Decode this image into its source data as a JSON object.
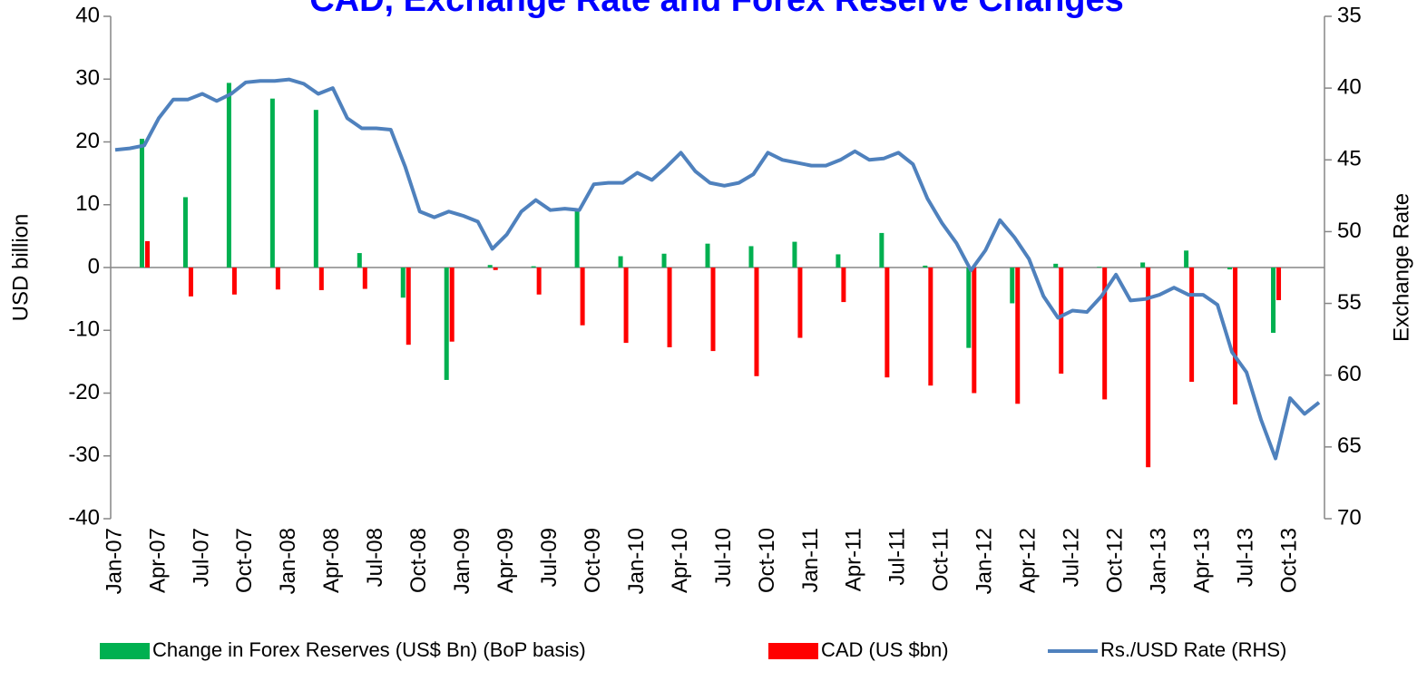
{
  "chart_data": {
    "type": "combo",
    "title": "CAD, Exchange Rate and Forex Reserve Changes",
    "y_label": "USD billion",
    "y2_label": "Exchange Rate",
    "categories": [
      "Jan-07",
      null,
      null,
      "Apr-07",
      null,
      null,
      "Jul-07",
      null,
      null,
      "Oct-07",
      null,
      null,
      "Jan-08",
      null,
      null,
      "Apr-08",
      null,
      null,
      "Jul-08",
      null,
      null,
      "Oct-08",
      null,
      null,
      "Jan-09",
      null,
      null,
      "Apr-09",
      null,
      null,
      "Jul-09",
      null,
      null,
      "Oct-09",
      null,
      null,
      "Jan-10",
      null,
      null,
      "Apr-10",
      null,
      null,
      "Jul-10",
      null,
      null,
      "Oct-10",
      null,
      null,
      "Jan-11",
      null,
      null,
      "Apr-11",
      null,
      null,
      "Jul-11",
      null,
      null,
      "Oct-11",
      null,
      null,
      "Jan-12",
      null,
      null,
      "Apr-12",
      null,
      null,
      "Jul-12",
      null,
      null,
      "Oct-12",
      null,
      null,
      "Jan-13",
      null,
      null,
      "Apr-13",
      null,
      null,
      "Jul-13",
      null,
      null,
      "Oct-13",
      null,
      null
    ],
    "series": [
      {
        "name": "Change in Forex Reserves (US$ Bn) (BoP basis)",
        "type": "bar",
        "axis": "y",
        "color": "#00b050",
        "values": [
          null,
          null,
          20.5,
          null,
          null,
          11.2,
          null,
          null,
          29.4,
          null,
          null,
          26.9,
          null,
          null,
          25.1,
          null,
          null,
          2.3,
          null,
          null,
          -4.8,
          null,
          null,
          -17.9,
          null,
          null,
          0.4,
          null,
          null,
          0.2,
          null,
          null,
          9.3,
          null,
          null,
          1.8,
          null,
          null,
          2.2,
          null,
          null,
          3.8,
          null,
          null,
          3.4,
          null,
          null,
          4.1,
          null,
          null,
          2.1,
          null,
          null,
          5.5,
          null,
          null,
          0.3,
          null,
          null,
          -12.8,
          null,
          null,
          -5.7,
          null,
          null,
          0.6,
          null,
          null,
          0.1,
          null,
          null,
          0.8,
          null,
          null,
          2.7,
          null,
          null,
          -0.3,
          null,
          null,
          -10.4,
          null,
          null,
          null
        ]
      },
      {
        "name": "CAD (US $bn)",
        "type": "bar",
        "axis": "y",
        "color": "#ff0000",
        "values": [
          null,
          null,
          4.2,
          null,
          null,
          -4.6,
          null,
          null,
          -4.3,
          null,
          null,
          -3.5,
          null,
          null,
          -3.6,
          null,
          null,
          -3.4,
          null,
          null,
          -12.3,
          null,
          null,
          -11.8,
          null,
          null,
          -0.4,
          null,
          null,
          -4.3,
          null,
          null,
          -9.2,
          null,
          null,
          -12.0,
          null,
          null,
          -12.7,
          null,
          null,
          -13.3,
          null,
          null,
          -17.3,
          null,
          null,
          -11.2,
          null,
          null,
          -5.5,
          null,
          null,
          -17.5,
          null,
          null,
          -18.8,
          null,
          null,
          -20.0,
          null,
          null,
          -21.7,
          null,
          null,
          -16.9,
          null,
          null,
          -21.0,
          null,
          null,
          -31.8,
          null,
          null,
          -18.2,
          null,
          null,
          -21.8,
          null,
          null,
          -5.2,
          null,
          null,
          null
        ]
      },
      {
        "name": "Rs./USD Rate (RHS)",
        "type": "line",
        "axis": "y2",
        "color": "#4f81bd",
        "values": [
          44.3,
          44.2,
          44.0,
          42.1,
          40.8,
          40.8,
          40.4,
          40.9,
          40.4,
          39.6,
          39.5,
          39.5,
          39.4,
          39.7,
          40.4,
          40.0,
          42.1,
          42.8,
          42.8,
          42.9,
          45.5,
          48.6,
          49.0,
          48.6,
          48.9,
          49.3,
          51.2,
          50.2,
          48.6,
          47.8,
          48.5,
          48.4,
          48.5,
          46.7,
          46.6,
          46.6,
          45.9,
          46.4,
          45.5,
          44.5,
          45.8,
          46.6,
          46.8,
          46.6,
          46.0,
          44.5,
          45.0,
          45.2,
          45.4,
          45.4,
          45.0,
          44.4,
          45.0,
          44.9,
          44.5,
          45.3,
          47.7,
          49.4,
          50.8,
          52.7,
          51.3,
          49.2,
          50.4,
          51.9,
          54.5,
          56.0,
          55.5,
          55.6,
          54.5,
          53.0,
          54.8,
          54.7,
          54.4,
          53.9,
          54.4,
          54.4,
          55.1,
          58.4,
          59.8,
          63.1,
          65.8,
          61.6,
          62.7,
          61.9
        ]
      }
    ],
    "ylim": [
      -40,
      40
    ],
    "yticks": [
      -40,
      -30,
      -20,
      -10,
      0,
      10,
      20,
      30,
      40
    ],
    "y2lim": [
      35,
      70
    ],
    "y2ticks": [
      35,
      40,
      45,
      50,
      55,
      60,
      65,
      70
    ],
    "y2_reversed": true,
    "legend": "bottom"
  }
}
